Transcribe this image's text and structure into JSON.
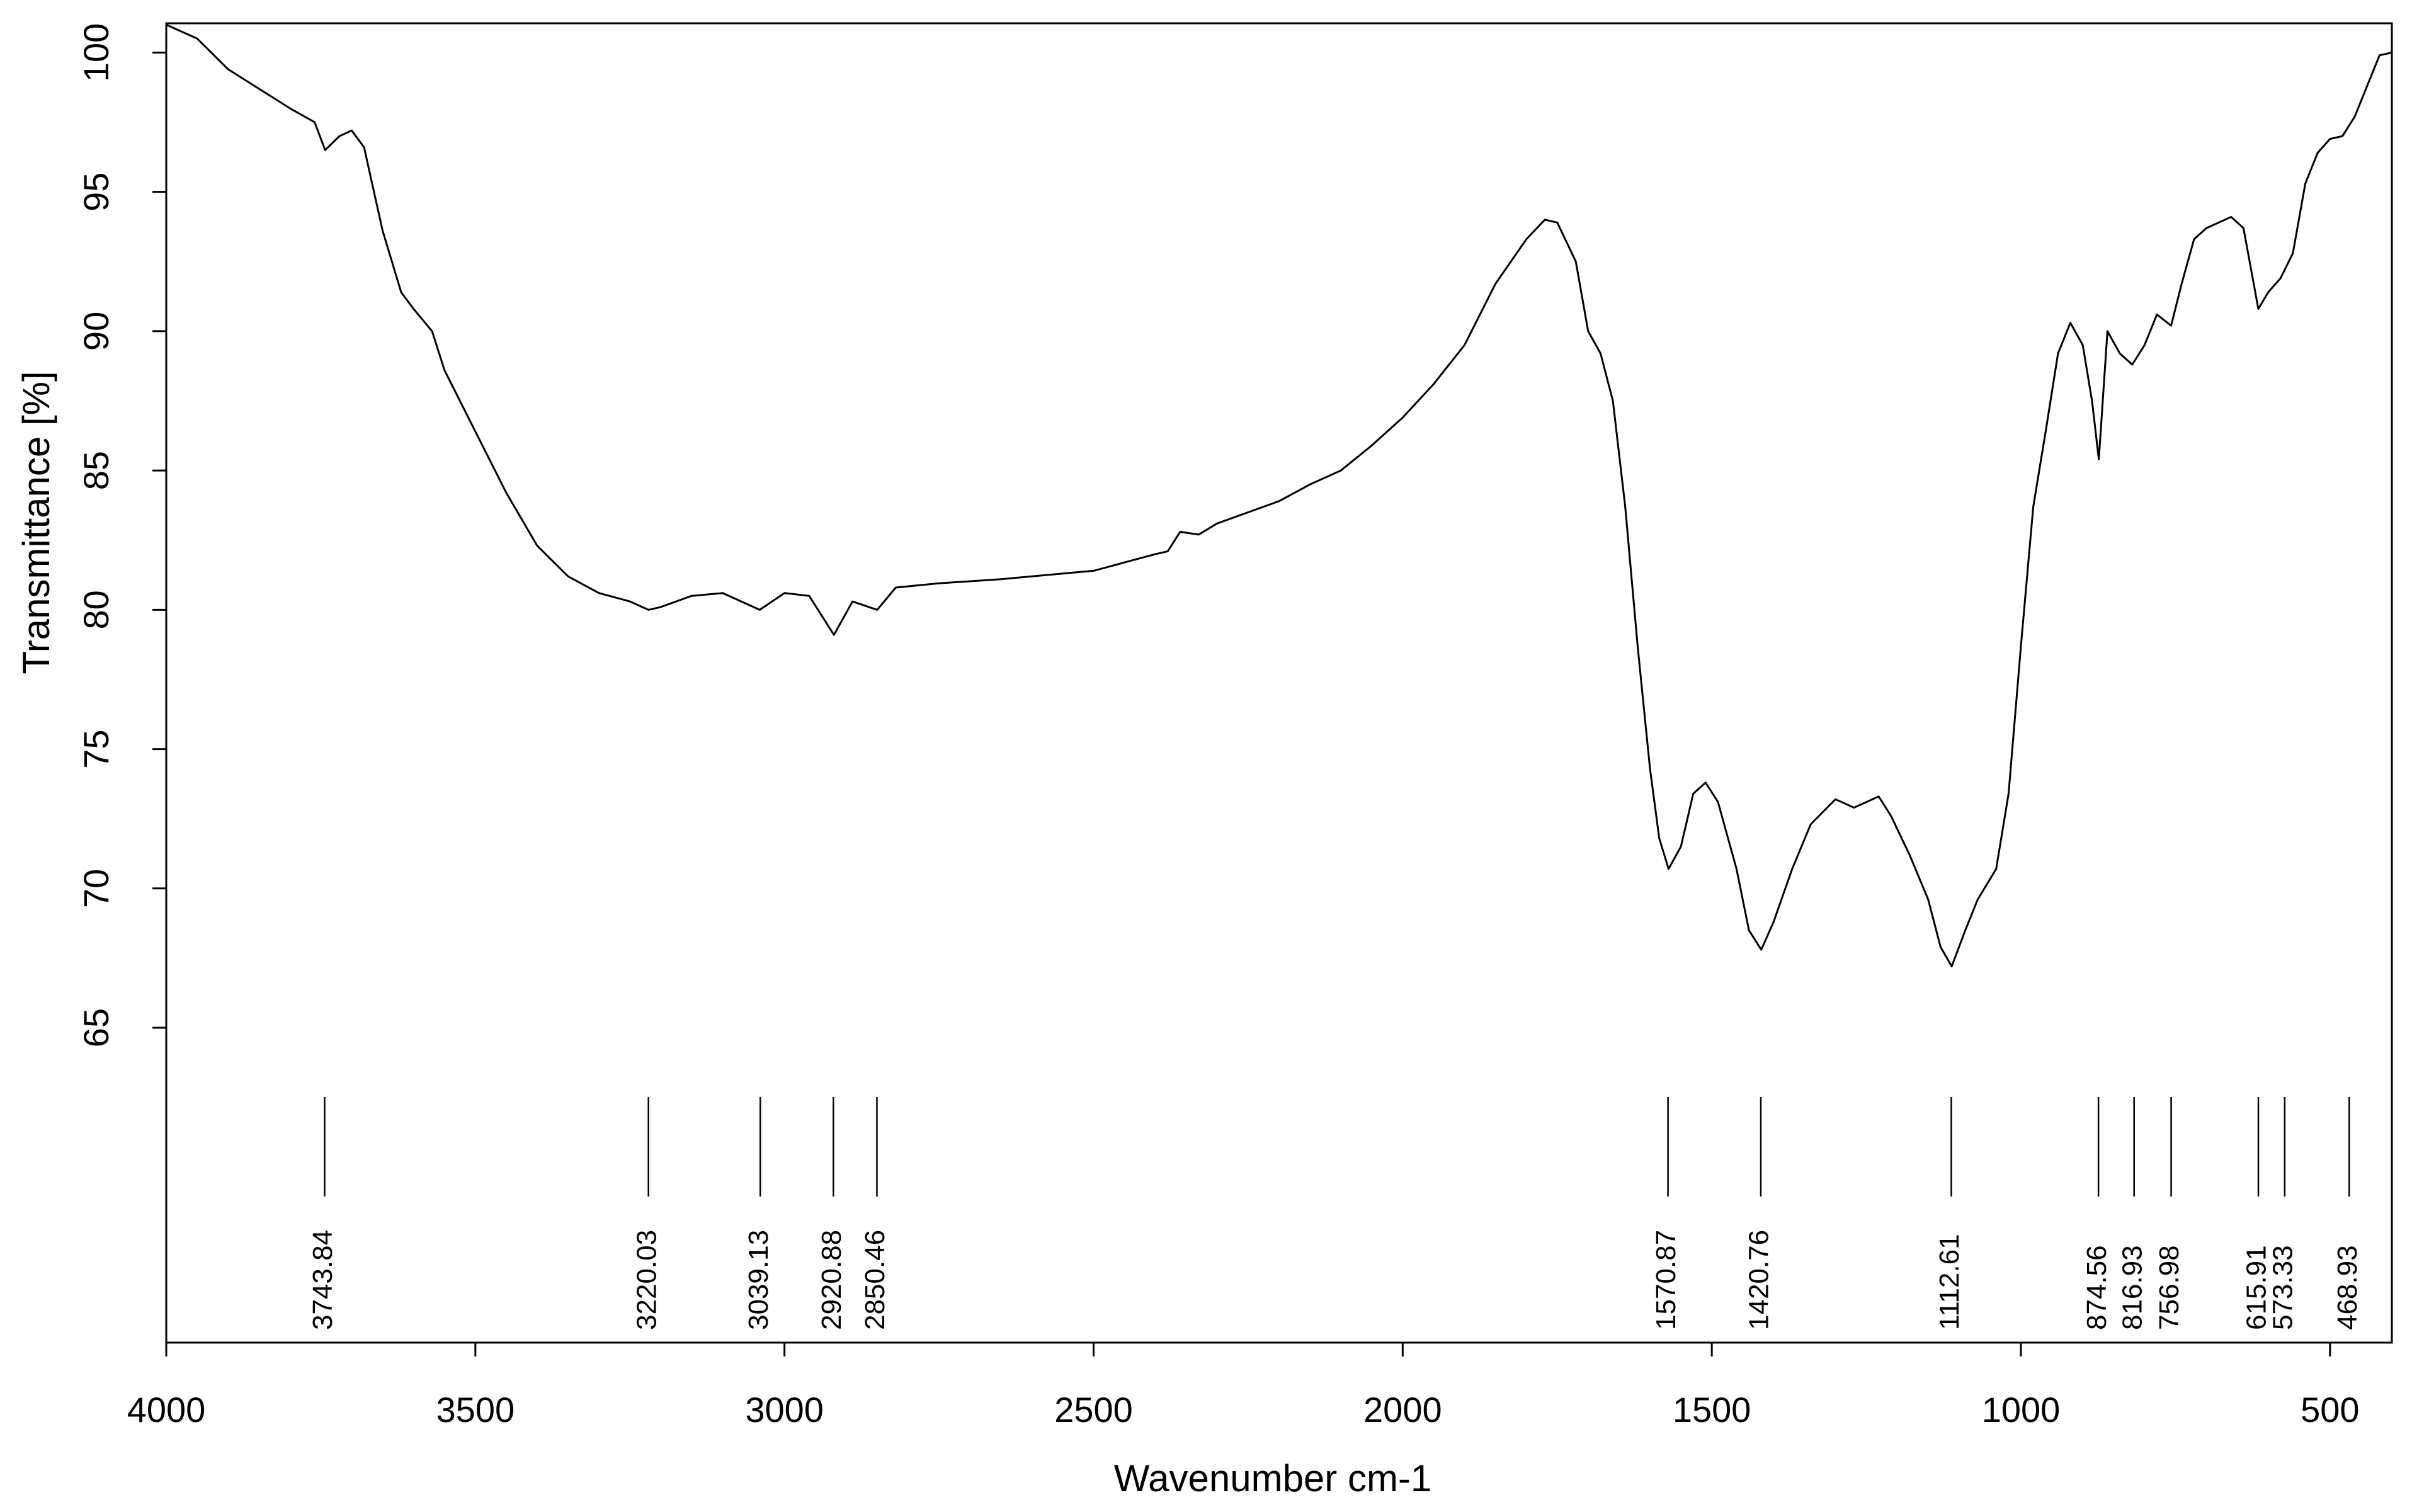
{
  "chart_data": {
    "type": "line",
    "xlabel": "Wavenumber cm-1",
    "ylabel": "Transmittance [%]",
    "color": "#000000",
    "xlim": [
      4000,
      400
    ],
    "ylim": [
      53.7,
      101.05
    ],
    "xticks": [
      4000,
      3500,
      3000,
      2500,
      2000,
      1500,
      1000,
      500
    ],
    "yticks": [
      65,
      70,
      75,
      80,
      85,
      90,
      95,
      100
    ],
    "x": [
      4000,
      3950,
      3900,
      3850,
      3800,
      3760,
      3743,
      3720,
      3700,
      3680,
      3650,
      3620,
      3600,
      3570,
      3550,
      3500,
      3450,
      3400,
      3350,
      3300,
      3250,
      3220,
      3200,
      3150,
      3100,
      3040,
      3000,
      2960,
      2920,
      2890,
      2850,
      2820,
      2750,
      2650,
      2550,
      2500,
      2450,
      2400,
      2380,
      2360,
      2330,
      2300,
      2250,
      2200,
      2150,
      2100,
      2050,
      2000,
      1950,
      1900,
      1850,
      1800,
      1770,
      1750,
      1720,
      1700,
      1680,
      1660,
      1640,
      1620,
      1600,
      1585,
      1570,
      1550,
      1530,
      1510,
      1490,
      1460,
      1440,
      1420,
      1400,
      1370,
      1340,
      1300,
      1270,
      1230,
      1210,
      1180,
      1150,
      1130,
      1112,
      1090,
      1070,
      1040,
      1020,
      1000,
      980,
      960,
      940,
      920,
      900,
      885,
      874,
      860,
      840,
      820,
      800,
      780,
      757,
      740,
      720,
      700,
      680,
      660,
      640,
      616,
      600,
      580,
      560,
      540,
      520,
      500,
      480,
      460,
      440,
      420,
      400
    ],
    "values": [
      101.0,
      100.5,
      99.4,
      98.7,
      98.0,
      97.5,
      96.5,
      97.0,
      97.2,
      96.6,
      93.6,
      91.4,
      90.8,
      90.0,
      88.6,
      86.4,
      84.2,
      82.3,
      81.2,
      80.6,
      80.3,
      80.0,
      80.1,
      80.5,
      80.6,
      80.0,
      80.6,
      80.5,
      79.1,
      80.3,
      80.0,
      80.8,
      80.95,
      81.1,
      81.3,
      81.4,
      81.7,
      82.0,
      82.1,
      82.8,
      82.7,
      83.1,
      83.5,
      83.9,
      84.5,
      85.0,
      85.9,
      86.9,
      88.1,
      89.5,
      91.7,
      93.3,
      94.0,
      93.9,
      92.5,
      90.0,
      89.2,
      87.5,
      83.7,
      78.7,
      74.3,
      71.8,
      70.7,
      71.5,
      73.4,
      73.8,
      73.1,
      70.7,
      68.5,
      67.8,
      68.8,
      70.7,
      72.3,
      73.2,
      72.9,
      73.3,
      72.6,
      71.2,
      69.6,
      67.9,
      67.2,
      68.5,
      69.6,
      70.7,
      73.4,
      78.7,
      83.7,
      86.4,
      89.2,
      90.3,
      89.5,
      87.5,
      85.4,
      90.0,
      89.2,
      88.8,
      89.5,
      90.6,
      90.2,
      91.7,
      93.3,
      93.7,
      93.9,
      94.1,
      93.7,
      90.8,
      91.4,
      91.9,
      92.8,
      95.3,
      96.4,
      96.9,
      97.0,
      97.7,
      98.8,
      99.9,
      100.0
    ],
    "peaks": [
      3743.84,
      3220.03,
      3039.13,
      2920.88,
      2850.46,
      1570.87,
      1420.76,
      1112.61,
      874.56,
      816.93,
      756.98,
      615.91,
      573.33,
      468.93
    ]
  }
}
